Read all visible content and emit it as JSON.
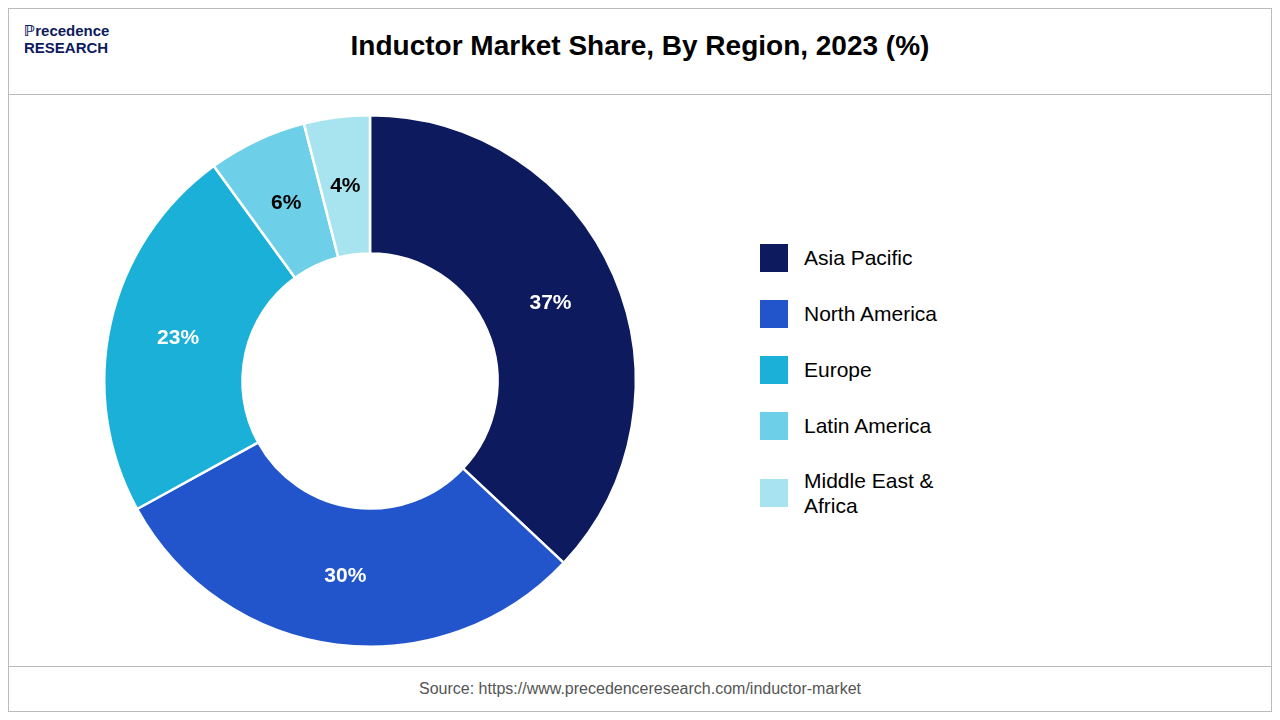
{
  "chart_data": {
    "type": "doughnut",
    "title": "Inductor Market Share, By Region, 2023 (%)",
    "categories": [
      "Asia Pacific",
      "North America",
      "Europe",
      "Latin America",
      "Middle East &\nAfrica"
    ],
    "values": [
      37,
      30,
      23,
      6,
      4
    ],
    "value_labels": [
      "37%",
      "30%",
      "23%",
      "6%",
      "4%"
    ],
    "colors": [
      "#0d1b5e",
      "#2255cc",
      "#1ab0d8",
      "#6dd0e8",
      "#a8e4f0"
    ],
    "data_labels": true,
    "legend": "right",
    "annotations": [
      "ℙrecedence\nRESEARCH",
      "Source: https://www.precedenceresearch.com/inductor-market"
    ]
  }
}
